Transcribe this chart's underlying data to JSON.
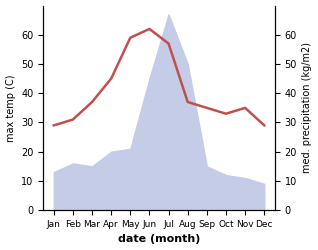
{
  "months": [
    "Jan",
    "Feb",
    "Mar",
    "Apr",
    "May",
    "Jun",
    "Jul",
    "Aug",
    "Sep",
    "Oct",
    "Nov",
    "Dec"
  ],
  "temperature": [
    29,
    31,
    37,
    45,
    59,
    62,
    57,
    37,
    35,
    33,
    35,
    29
  ],
  "precipitation": [
    13,
    16,
    15,
    20,
    21,
    45,
    67,
    50,
    15,
    12,
    11,
    9
  ],
  "temp_color": "#c0504d",
  "precip_fill_color": "#c5cce8",
  "precip_edge_color": "#adb9da",
  "ylabel_left": "max temp (C)",
  "ylabel_right": "med. precipitation (kg/m2)",
  "xlabel": "date (month)",
  "ylim_left": [
    0,
    70
  ],
  "ylim_right": [
    0,
    70
  ],
  "yticks_left": [
    0,
    10,
    20,
    30,
    40,
    50,
    60
  ],
  "yticks_right": [
    0,
    10,
    20,
    30,
    40,
    50,
    60
  ],
  "bg_color": "#ffffff",
  "temp_linewidth": 1.8
}
